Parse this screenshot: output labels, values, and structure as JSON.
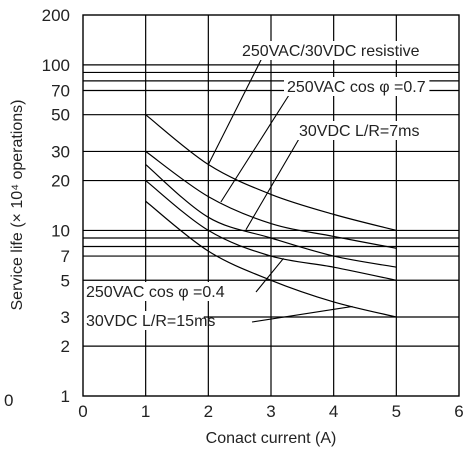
{
  "chart_data": {
    "type": "line",
    "xlabel": "Conact current (A)",
    "ylabel": "Service life (× 10⁴ operations)",
    "xlim": [
      0,
      6
    ],
    "ylim": [
      1,
      200
    ],
    "y_scale": "log",
    "grid": true,
    "x_ticks": [
      "0",
      "1",
      "2",
      "3",
      "4",
      "5",
      "6"
    ],
    "y_ticks": [
      {
        "value": 1,
        "label": "1"
      },
      {
        "value": 2,
        "label": "2"
      },
      {
        "value": 3,
        "label": "3"
      },
      {
        "value": 5,
        "label": "5"
      },
      {
        "value": 7,
        "label": "7"
      },
      {
        "value": 10,
        "label": "10"
      },
      {
        "value": 20,
        "label": "20"
      },
      {
        "value": 30,
        "label": "30"
      },
      {
        "value": 50,
        "label": "50"
      },
      {
        "value": 70,
        "label": "70"
      },
      {
        "value": 100,
        "label": "100"
      },
      {
        "value": 200,
        "label": "200"
      }
    ],
    "extra_gridlines": [
      8,
      9,
      80,
      90
    ],
    "stray_label": "0",
    "series": [
      {
        "name": "250VAC/30VDC resistive",
        "x": [
          1,
          2,
          3,
          4,
          5
        ],
        "y": [
          50,
          25,
          16.5,
          12.5,
          10
        ],
        "label_at": 2
      },
      {
        "name": "250VAC cos φ =0.7",
        "x": [
          1,
          2,
          3,
          4,
          5
        ],
        "y": [
          30,
          16,
          11,
          9.2,
          7.8
        ],
        "label_at": 2.2
      },
      {
        "name": "30VDC L/R=7ms",
        "x": [
          1,
          2,
          3,
          4,
          5
        ],
        "y": [
          25,
          12,
          9,
          7,
          6
        ],
        "label_at": 2.6
      },
      {
        "name": "250VAC cos φ =0.4",
        "x": [
          1,
          2,
          3,
          4,
          5
        ],
        "y": [
          20,
          10,
          7,
          6,
          5
        ],
        "label_at": 3.2
      },
      {
        "name": "30VDC L/R=15ms",
        "x": [
          1,
          2,
          3,
          4,
          5
        ],
        "y": [
          15,
          7.5,
          5,
          3.7,
          3
        ],
        "label_at": 4.3
      }
    ]
  }
}
